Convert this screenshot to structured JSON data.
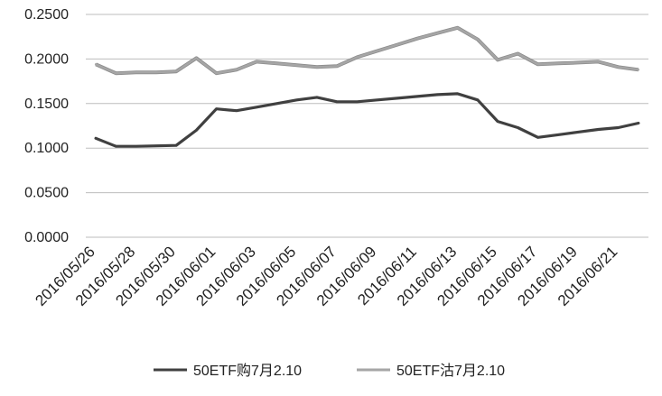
{
  "chart_data": {
    "type": "line",
    "title": "",
    "xlabel": "",
    "ylabel": "",
    "ylim": [
      0,
      0.25
    ],
    "y_ticks": [
      "0.0000",
      "0.0500",
      "0.1000",
      "0.1500",
      "0.2000",
      "0.2500"
    ],
    "grid": "horizontal",
    "legend_position": "bottom",
    "x": [
      "2016/05/26",
      "2016/05/27",
      "2016/05/28",
      "2016/05/29",
      "2016/05/30",
      "2016/05/31",
      "2016/06/01",
      "2016/06/02",
      "2016/06/03",
      "2016/06/04",
      "2016/06/05",
      "2016/06/06",
      "2016/06/07",
      "2016/06/08",
      "2016/06/09",
      "2016/06/10",
      "2016/06/11",
      "2016/06/12",
      "2016/06/13",
      "2016/06/14",
      "2016/06/15",
      "2016/06/16",
      "2016/06/17",
      "2016/06/18",
      "2016/06/19",
      "2016/06/20",
      "2016/06/21",
      "2016/06/22"
    ],
    "x_tick_labels": [
      "2016/05/26",
      "2016/05/28",
      "2016/05/30",
      "2016/06/01",
      "2016/06/03",
      "2016/06/05",
      "2016/06/07",
      "2016/06/09",
      "2016/06/11",
      "2016/06/13",
      "2016/06/15",
      "2016/06/17",
      "2016/06/19",
      "2016/06/21"
    ],
    "series": [
      {
        "name": "50ETF购7月2.10",
        "color": "#404040",
        "values": [
          0.111,
          0.102,
          0.102,
          0.1025,
          0.103,
          0.12,
          0.144,
          0.142,
          0.146,
          0.15,
          0.154,
          0.157,
          0.152,
          0.152,
          0.154,
          0.156,
          0.158,
          0.16,
          0.161,
          0.154,
          0.13,
          0.123,
          0.112,
          0.115,
          0.118,
          0.121,
          0.123,
          0.128
        ]
      },
      {
        "name": "50ETF沽7月2.10",
        "color": "#a6a6a6",
        "values": [
          0.194,
          0.184,
          0.185,
          0.185,
          0.186,
          0.201,
          0.184,
          0.188,
          0.197,
          0.195,
          0.193,
          0.191,
          0.192,
          0.202,
          0.209,
          0.216,
          0.223,
          0.229,
          0.235,
          0.222,
          0.199,
          0.206,
          0.194,
          0.195,
          0.196,
          0.197,
          0.191,
          0.188
        ]
      }
    ]
  }
}
